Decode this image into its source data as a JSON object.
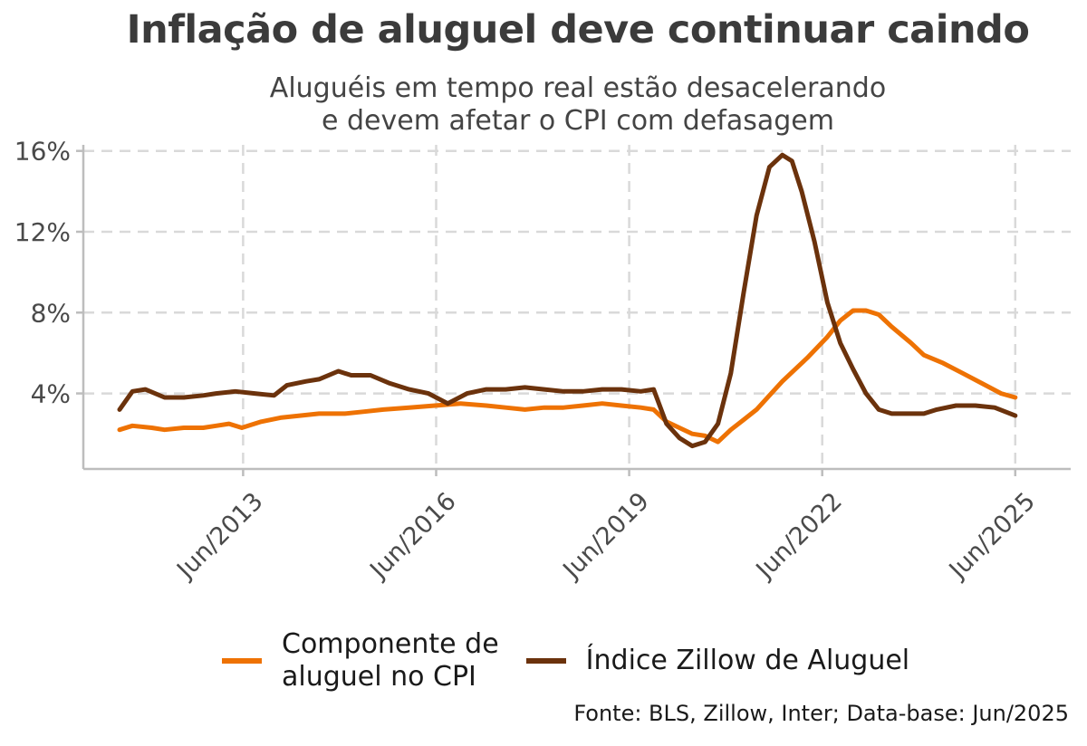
{
  "chart_data": {
    "type": "line",
    "title": "Inflação de aluguel deve continuar caindo",
    "subtitle": "Aluguéis em tempo real estão desacelerando\ne devem afetar o CPI com defasagem",
    "source": "Fonte: BLS, Zillow, Inter; Data-base: Jun/2025",
    "yticks": [
      "4%",
      "8%",
      "12%",
      "16%"
    ],
    "yvalues": [
      4,
      8,
      12,
      16
    ],
    "xticks": [
      "Jun/2013",
      "Jun/2016",
      "Jun/2019",
      "Jun/2022",
      "Jun/2025"
    ],
    "xtick_years": [
      2013.42,
      2016.42,
      2019.42,
      2022.42,
      2025.42
    ],
    "xlim": [
      2011.5,
      2026.0
    ],
    "ylim": [
      0.8,
      16.3
    ],
    "grid": true,
    "legend_position": "bottom",
    "series": [
      {
        "name": "Componente de\naluguel no CPI",
        "color": "#ee7203",
        "x": [
          2011.5,
          2011.7,
          2012.0,
          2012.2,
          2012.5,
          2012.8,
          2013.0,
          2013.2,
          2013.4,
          2013.7,
          2014.0,
          2014.3,
          2014.6,
          2015.0,
          2015.3,
          2015.6,
          2016.0,
          2016.4,
          2016.8,
          2017.2,
          2017.5,
          2017.8,
          2018.1,
          2018.4,
          2018.7,
          2019.0,
          2019.3,
          2019.6,
          2019.8,
          2020.0,
          2020.2,
          2020.4,
          2020.6,
          2020.8,
          2021.0,
          2021.2,
          2021.4,
          2021.6,
          2021.8,
          2022.0,
          2022.2,
          2022.5,
          2022.7,
          2022.9,
          2023.1,
          2023.3,
          2023.5,
          2023.8,
          2024.0,
          2024.3,
          2024.6,
          2024.9,
          2025.2,
          2025.42
        ],
        "values": [
          2.2,
          2.4,
          2.3,
          2.2,
          2.3,
          2.3,
          2.4,
          2.5,
          2.3,
          2.6,
          2.8,
          2.9,
          3.0,
          3.0,
          3.1,
          3.2,
          3.3,
          3.4,
          3.5,
          3.4,
          3.3,
          3.2,
          3.3,
          3.3,
          3.4,
          3.5,
          3.4,
          3.3,
          3.2,
          2.6,
          2.3,
          2.0,
          1.9,
          1.6,
          2.2,
          2.7,
          3.2,
          3.9,
          4.6,
          5.2,
          5.8,
          6.8,
          7.6,
          8.1,
          8.1,
          7.9,
          7.3,
          6.5,
          5.9,
          5.5,
          5.0,
          4.5,
          4.0,
          3.8
        ]
      },
      {
        "name": "Índice Zillow de Aluguel",
        "color": "#6b320c",
        "x": [
          2011.5,
          2011.7,
          2011.9,
          2012.2,
          2012.5,
          2012.8,
          2013.0,
          2013.3,
          2013.6,
          2013.9,
          2014.1,
          2014.4,
          2014.6,
          2014.9,
          2015.1,
          2015.4,
          2015.7,
          2016.0,
          2016.3,
          2016.6,
          2016.9,
          2017.2,
          2017.5,
          2017.8,
          2018.1,
          2018.4,
          2018.7,
          2019.0,
          2019.3,
          2019.6,
          2019.8,
          2020.0,
          2020.2,
          2020.4,
          2020.6,
          2020.8,
          2021.0,
          2021.2,
          2021.4,
          2021.6,
          2021.8,
          2021.95,
          2022.1,
          2022.3,
          2022.5,
          2022.7,
          2022.9,
          2023.1,
          2023.3,
          2023.5,
          2023.8,
          2024.0,
          2024.2,
          2024.5,
          2024.8,
          2025.1,
          2025.42
        ],
        "values": [
          3.2,
          4.1,
          4.2,
          3.8,
          3.8,
          3.9,
          4.0,
          4.1,
          4.0,
          3.9,
          4.4,
          4.6,
          4.7,
          5.1,
          4.9,
          4.9,
          4.5,
          4.2,
          4.0,
          3.5,
          4.0,
          4.2,
          4.2,
          4.3,
          4.2,
          4.1,
          4.1,
          4.2,
          4.2,
          4.1,
          4.2,
          2.5,
          1.8,
          1.4,
          1.6,
          2.5,
          5.0,
          9.0,
          12.8,
          15.2,
          15.8,
          15.5,
          14.0,
          11.5,
          8.5,
          6.5,
          5.2,
          4.0,
          3.2,
          3.0,
          3.0,
          3.0,
          3.2,
          3.4,
          3.4,
          3.3,
          2.9
        ]
      }
    ]
  }
}
